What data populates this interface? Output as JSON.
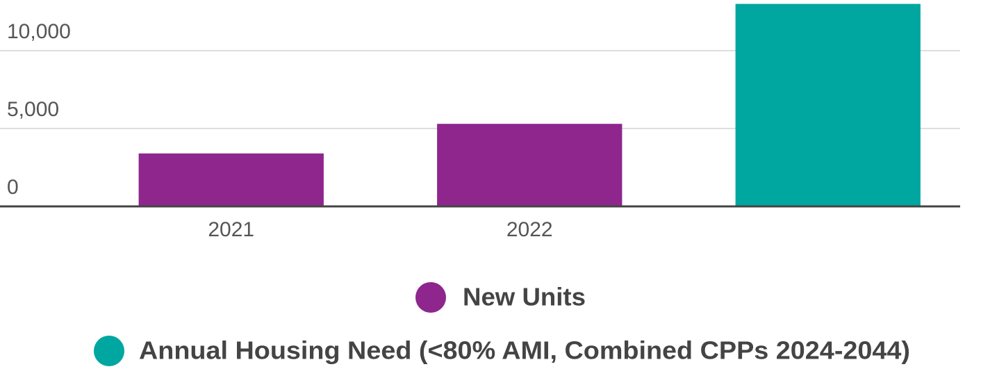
{
  "chart_data": {
    "type": "bar",
    "categories": [
      "2021",
      "2022",
      null
    ],
    "series": [
      {
        "name": "New Units",
        "color": "#8e268e",
        "values": [
          3400,
          5300,
          null
        ]
      },
      {
        "name": "Annual Housing Need (<80% AMI, Combined CPPs 2024-2044)",
        "color": "#00a6a0",
        "values": [
          null,
          null,
          13000
        ]
      }
    ],
    "ylim": [
      0,
      13250
    ],
    "yticks": [
      0,
      {
        "value": 5000,
        "label": "5,000"
      },
      {
        "value": 10000,
        "label": "10,000"
      }
    ],
    "grid": true
  }
}
